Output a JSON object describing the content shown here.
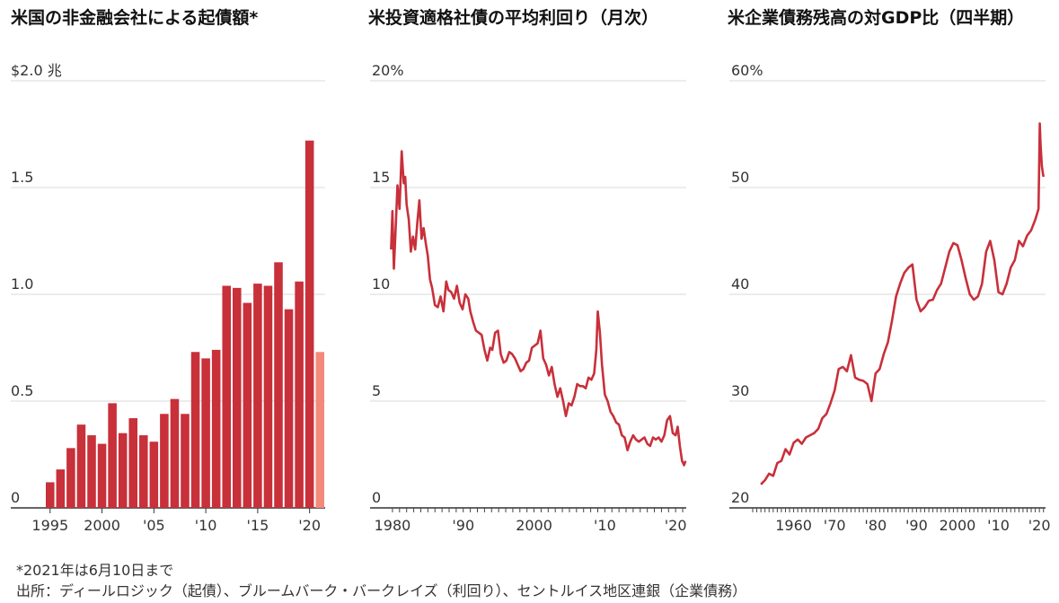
{
  "chart_data": [
    {
      "type": "bar",
      "title": "米国の非金融会社による起債額*",
      "unit_label": "$2.0 兆",
      "ylim": [
        0,
        2.0
      ],
      "yticks": [
        0,
        0.5,
        1.0,
        1.5,
        2.0
      ],
      "ytick_labels": [
        "0",
        "0.5",
        "1.0",
        "1.5",
        "$2.0 兆"
      ],
      "grid": true,
      "categories": [
        "1995",
        "1996",
        "1997",
        "1998",
        "1999",
        "2000",
        "2001",
        "2002",
        "2003",
        "2004",
        "2005",
        "2006",
        "2007",
        "2008",
        "2009",
        "2010",
        "2011",
        "2012",
        "2013",
        "2014",
        "2015",
        "2016",
        "2017",
        "2018",
        "2019",
        "2020",
        "2021"
      ],
      "values": [
        0.12,
        0.18,
        0.28,
        0.39,
        0.34,
        0.3,
        0.49,
        0.35,
        0.42,
        0.34,
        0.31,
        0.44,
        0.51,
        0.44,
        0.73,
        0.7,
        0.74,
        1.04,
        1.03,
        0.96,
        1.05,
        1.04,
        1.15,
        0.93,
        1.06,
        1.72,
        0.73
      ],
      "highlight_last": true,
      "xtick_labels": [
        {
          "at": "1995",
          "label": "1995"
        },
        {
          "at": "2000",
          "label": "2000"
        },
        {
          "at": "2005",
          "label": "'05"
        },
        {
          "at": "2010",
          "label": "'10"
        },
        {
          "at": "2015",
          "label": "'15"
        },
        {
          "at": "2020",
          "label": "'20"
        }
      ],
      "colors": {
        "bar": "#c8303a",
        "bar_partial": "#f28a7c"
      }
    },
    {
      "type": "line",
      "title": "米投資適格社債の平均利回り（月次）",
      "ylim": [
        0,
        20
      ],
      "yticks": [
        0,
        5,
        10,
        15,
        20
      ],
      "ytick_labels": [
        "0",
        "5",
        "10",
        "15",
        "20%"
      ],
      "xlim": [
        1979.5,
        2021.5
      ],
      "grid": true,
      "xtick_labels": [
        {
          "at": 1980,
          "label": "1980"
        },
        {
          "at": 1990,
          "label": "'90"
        },
        {
          "at": 2000,
          "label": "2000"
        },
        {
          "at": 2010,
          "label": "'10"
        },
        {
          "at": 2020,
          "label": "'20"
        }
      ],
      "series": [
        {
          "color": "#c8303a",
          "x": [
            1979.8,
            1980.0,
            1980.2,
            1980.4,
            1980.7,
            1981.0,
            1981.3,
            1981.6,
            1981.8,
            1982.0,
            1982.3,
            1982.6,
            1982.9,
            1983.2,
            1983.5,
            1983.8,
            1984.1,
            1984.4,
            1984.7,
            1985.0,
            1985.3,
            1985.6,
            1986.0,
            1986.4,
            1986.8,
            1987.2,
            1987.6,
            1987.9,
            1988.3,
            1988.7,
            1989.1,
            1989.5,
            1989.9,
            1990.3,
            1990.7,
            1991.0,
            1991.4,
            1991.8,
            1992.2,
            1992.6,
            1993.0,
            1993.4,
            1993.8,
            1994.1,
            1994.5,
            1994.9,
            1995.3,
            1995.7,
            1996.1,
            1996.5,
            1996.9,
            1997.3,
            1997.7,
            1998.1,
            1998.5,
            1998.9,
            1999.3,
            1999.7,
            2000.1,
            2000.5,
            2000.9,
            2001.3,
            2001.7,
            2002.1,
            2002.5,
            2002.9,
            2003.3,
            2003.7,
            2004.1,
            2004.5,
            2004.9,
            2005.3,
            2005.7,
            2006.1,
            2006.5,
            2006.9,
            2007.3,
            2007.7,
            2008.1,
            2008.5,
            2008.8,
            2009.0,
            2009.3,
            2009.6,
            2010.0,
            2010.4,
            2010.8,
            2011.2,
            2011.6,
            2012.0,
            2012.4,
            2012.8,
            2013.2,
            2013.6,
            2014.0,
            2014.4,
            2014.8,
            2015.2,
            2015.6,
            2016.0,
            2016.4,
            2016.8,
            2017.2,
            2017.6,
            2018.0,
            2018.4,
            2018.8,
            2019.2,
            2019.6,
            2020.0,
            2020.3,
            2020.6,
            2020.9,
            2021.2,
            2021.4
          ],
          "y": [
            12.1,
            13.9,
            11.2,
            12.7,
            15.1,
            14.0,
            16.7,
            15.2,
            15.5,
            14.2,
            13.5,
            12.0,
            12.7,
            12.1,
            13.3,
            14.4,
            12.6,
            13.1,
            12.4,
            11.8,
            10.7,
            10.3,
            9.5,
            9.4,
            9.9,
            9.2,
            10.6,
            10.2,
            10.1,
            9.8,
            10.4,
            9.6,
            9.3,
            10.0,
            9.8,
            9.2,
            8.7,
            8.3,
            8.2,
            8.1,
            7.4,
            6.9,
            7.5,
            7.4,
            8.2,
            8.3,
            7.2,
            6.8,
            6.9,
            7.3,
            7.2,
            7.0,
            6.7,
            6.4,
            6.5,
            6.8,
            6.9,
            7.5,
            7.6,
            7.7,
            8.3,
            7.0,
            6.7,
            6.2,
            6.6,
            5.8,
            5.2,
            5.6,
            5.0,
            4.3,
            4.9,
            4.8,
            5.2,
            5.8,
            5.7,
            5.7,
            5.6,
            6.1,
            6.0,
            6.3,
            7.4,
            9.2,
            8.2,
            6.7,
            5.3,
            5.0,
            4.5,
            4.3,
            4.0,
            3.9,
            3.4,
            3.3,
            2.7,
            3.1,
            3.4,
            3.2,
            3.1,
            3.2,
            3.3,
            3.0,
            2.9,
            3.3,
            3.2,
            3.3,
            3.1,
            3.4,
            4.1,
            4.3,
            3.5,
            3.4,
            3.8,
            2.9,
            2.2,
            2.0,
            2.2
          ]
        }
      ]
    },
    {
      "type": "line",
      "title": "米企業債務残高の対GDP比（四半期）",
      "ylim": [
        20,
        60
      ],
      "yticks": [
        20,
        30,
        40,
        50,
        60
      ],
      "ytick_labels": [
        "20",
        "30",
        "40",
        "50",
        "60%"
      ],
      "xlim": [
        1950,
        2021.5
      ],
      "grid": true,
      "xtick_labels": [
        {
          "at": 1960,
          "label": "1960"
        },
        {
          "at": 1970,
          "label": "'70"
        },
        {
          "at": 1980,
          "label": "'80"
        },
        {
          "at": 1990,
          "label": "'90"
        },
        {
          "at": 2000,
          "label": "2000"
        },
        {
          "at": 2010,
          "label": "'10"
        },
        {
          "at": 2020,
          "label": "'20"
        }
      ],
      "series": [
        {
          "color": "#c8303a",
          "x": [
            1952,
            1953,
            1954,
            1955,
            1956,
            1957,
            1958,
            1959,
            1960,
            1961,
            1962,
            1963,
            1964,
            1965,
            1966,
            1967,
            1968,
            1969,
            1970,
            1971,
            1972,
            1973,
            1974,
            1975,
            1976,
            1977,
            1978,
            1979,
            1980,
            1981,
            1982,
            1983,
            1984,
            1985,
            1986,
            1987,
            1988,
            1989,
            1990,
            1991,
            1992,
            1993,
            1994,
            1995,
            1996,
            1997,
            1998,
            1999,
            2000,
            2001,
            2002,
            2003,
            2004,
            2005,
            2006,
            2007,
            2008,
            2009,
            2010,
            2011,
            2012,
            2013,
            2014,
            2015,
            2016,
            2017,
            2018,
            2019,
            2019.8,
            2020.1,
            2020.3,
            2020.6,
            2021.0
          ],
          "y": [
            22.2,
            22.6,
            23.2,
            23.0,
            24.2,
            24.4,
            25.5,
            25.0,
            26.1,
            26.4,
            26.0,
            26.6,
            26.8,
            27.0,
            27.4,
            28.4,
            28.8,
            29.8,
            31.0,
            33.0,
            33.2,
            32.8,
            34.3,
            32.2,
            32.0,
            31.9,
            31.6,
            30.0,
            32.6,
            33.0,
            34.4,
            35.5,
            37.5,
            39.8,
            41.0,
            42.0,
            42.5,
            42.8,
            39.5,
            38.4,
            38.8,
            39.4,
            39.5,
            40.4,
            41.0,
            42.5,
            44.0,
            44.8,
            44.6,
            43.2,
            41.5,
            40.0,
            39.5,
            39.8,
            41.0,
            44.0,
            45.0,
            43.2,
            40.2,
            40.0,
            41.0,
            42.5,
            43.2,
            45.0,
            44.5,
            45.5,
            46.0,
            47.0,
            48.0,
            56.0,
            54.0,
            52.0,
            51.0
          ]
        }
      ]
    }
  ],
  "footnote": "*2021年は6月10日まで",
  "source": "出所：ディールロジック（起債）、ブルームバーク・バークレイズ（利回り）、セントルイス地区連銀（企業債務）"
}
